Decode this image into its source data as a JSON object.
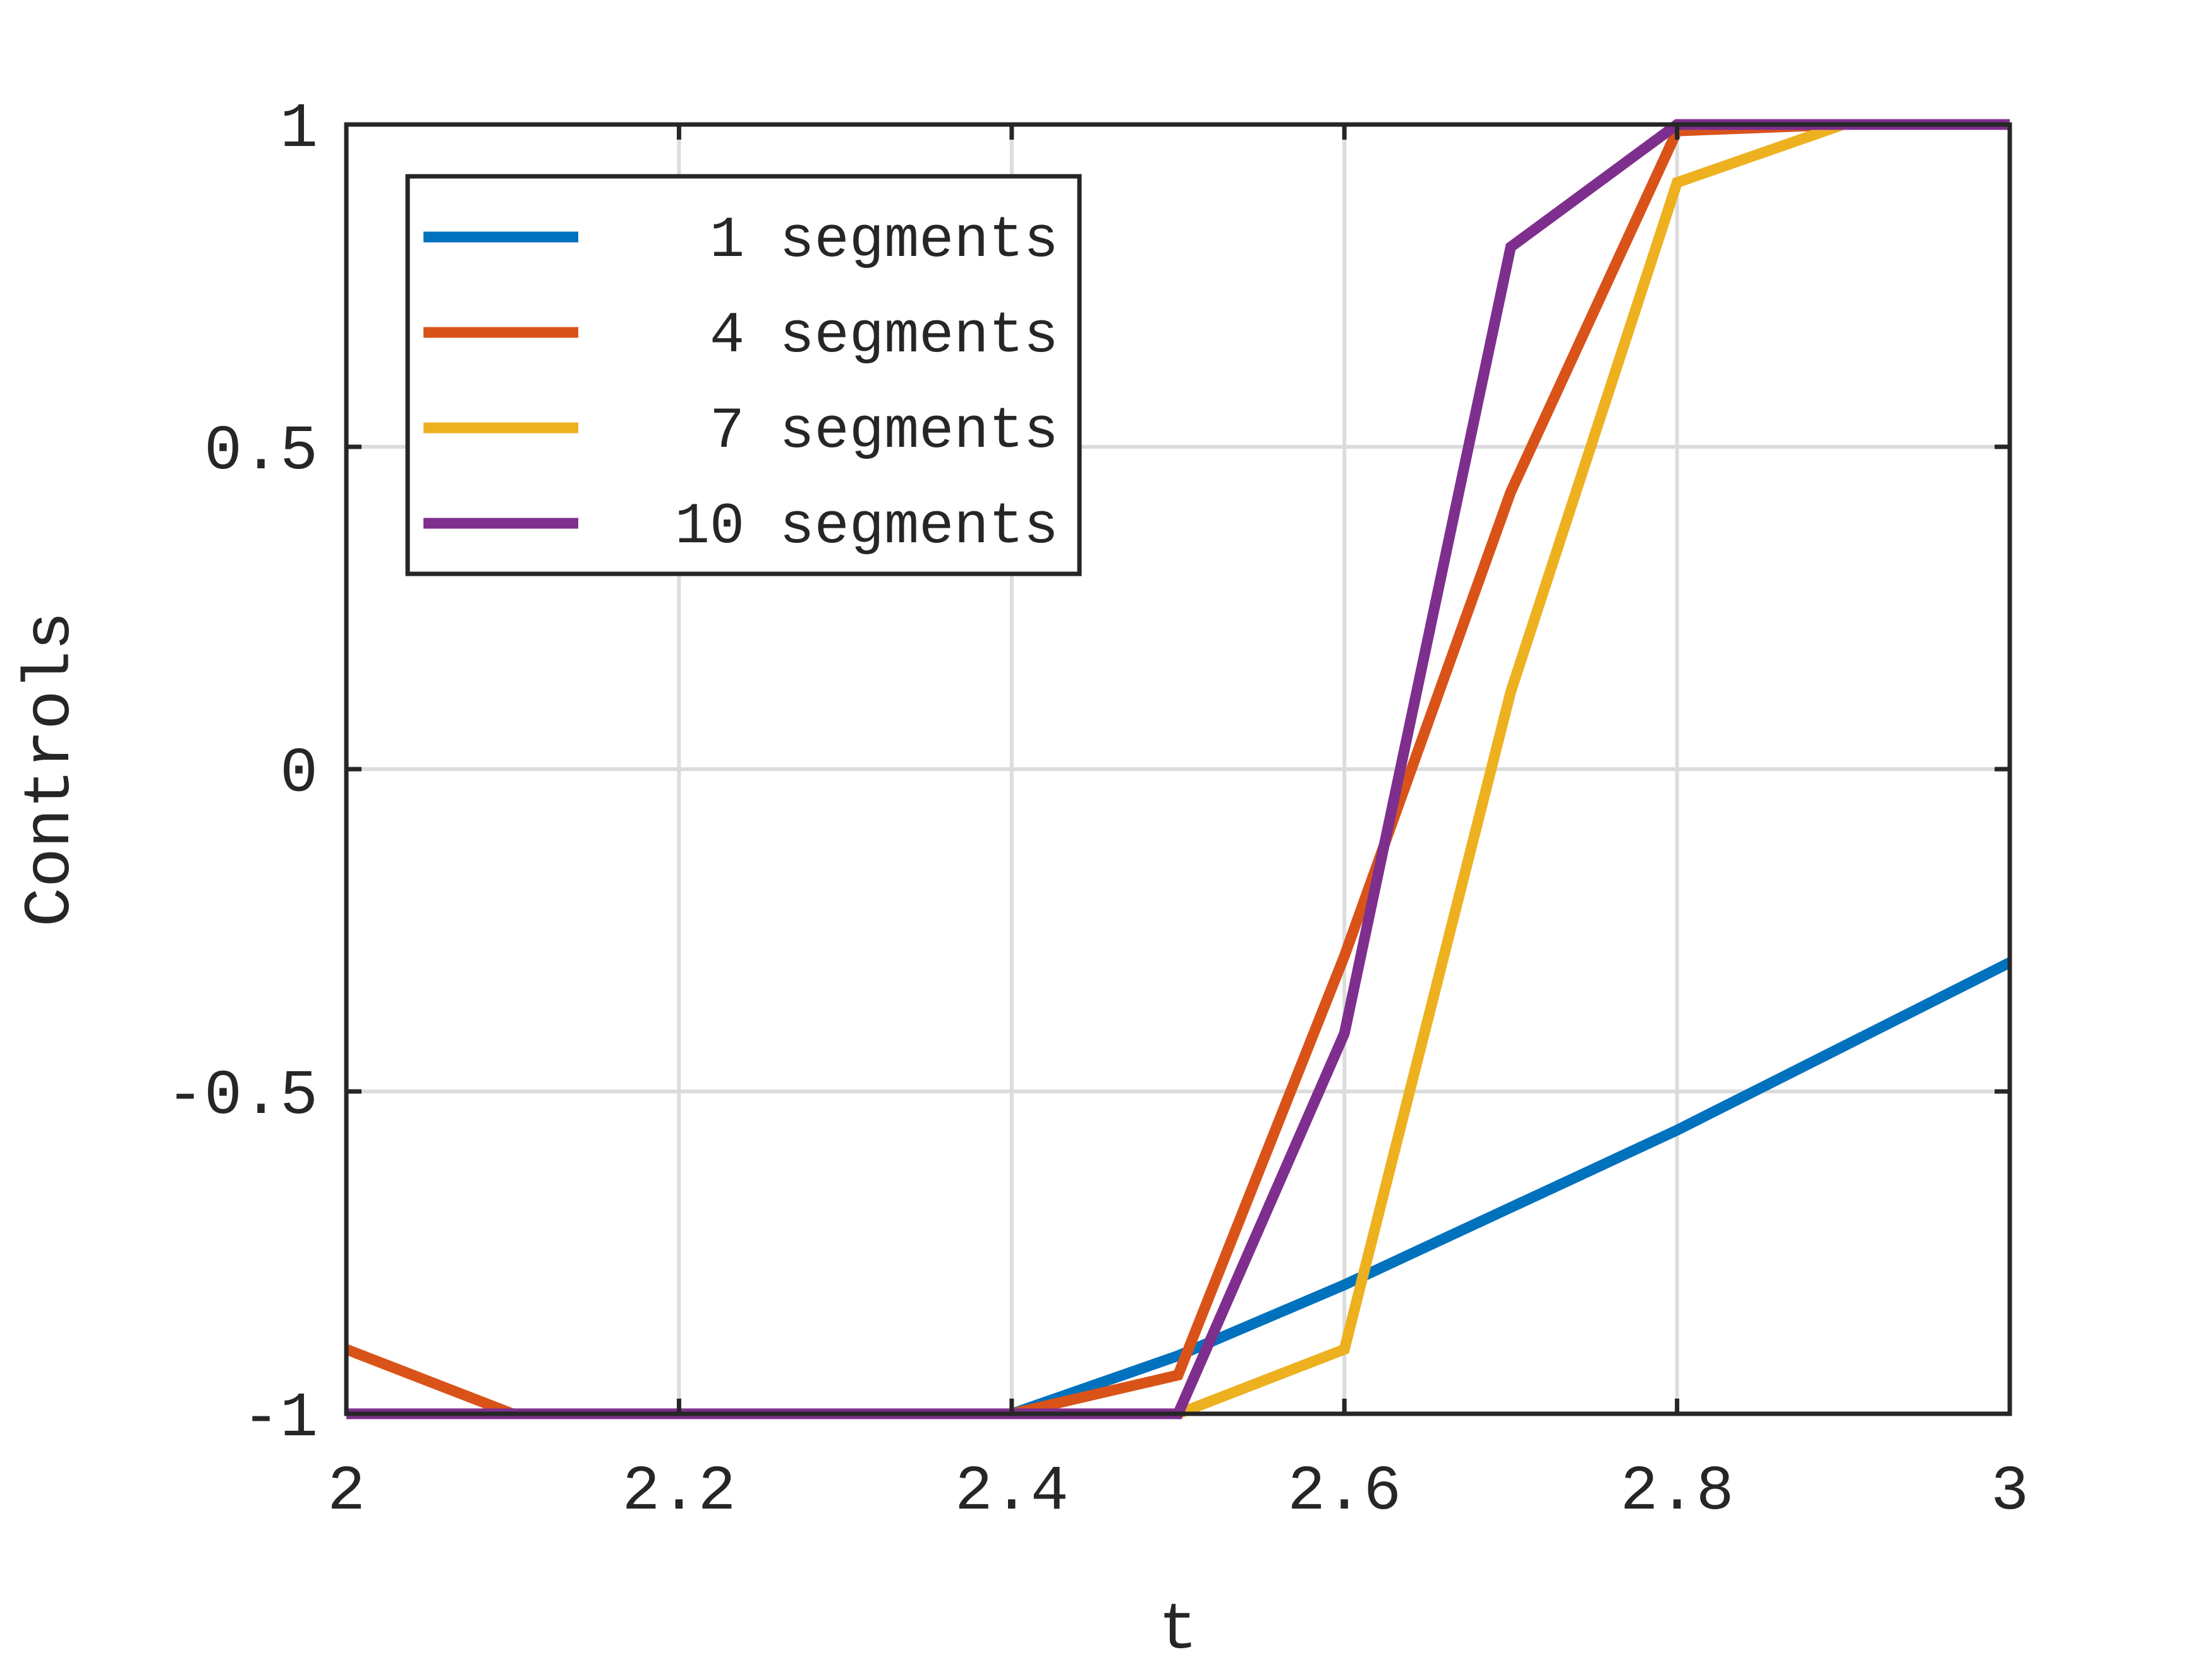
{
  "chart_data": {
    "type": "line",
    "title": "",
    "xlabel": "t",
    "ylabel": "Controls",
    "xlim": [
      2,
      3
    ],
    "ylim": [
      -1,
      1
    ],
    "grid": true,
    "legend_position": "top-left",
    "x_ticks": [
      2,
      2.2,
      2.4,
      2.6,
      2.8,
      3
    ],
    "x_tick_labels": [
      "2",
      "2.2",
      "2.4",
      "2.6",
      "2.8",
      "3"
    ],
    "y_ticks": [
      -1,
      -0.5,
      0,
      0.5,
      1
    ],
    "y_tick_labels": [
      "-1",
      "-0.5",
      "0",
      "0.5",
      "1"
    ],
    "series": [
      {
        "name": "1 segments",
        "legend_label": " 1 segments",
        "color": "#0072BD",
        "points": [
          [
            2.0,
            -1
          ],
          [
            2.1,
            -1
          ],
          [
            2.2,
            -1
          ],
          [
            2.3,
            -1
          ],
          [
            2.4,
            -1
          ],
          [
            2.5,
            -0.91
          ],
          [
            2.6,
            -0.8
          ],
          [
            2.7,
            -0.68
          ],
          [
            2.8,
            -0.56
          ],
          [
            2.9,
            -0.43
          ],
          [
            3.0,
            -0.3
          ]
        ]
      },
      {
        "name": "4 segments",
        "legend_label": " 4 segments",
        "color": "#D95319",
        "points": [
          [
            2.0,
            -0.9
          ],
          [
            2.1,
            -1
          ],
          [
            2.2,
            -1
          ],
          [
            2.3,
            -1
          ],
          [
            2.4,
            -1
          ],
          [
            2.5,
            -0.94
          ],
          [
            2.6,
            -0.29
          ],
          [
            2.7,
            0.43
          ],
          [
            2.8,
            0.99
          ],
          [
            2.9,
            1
          ],
          [
            3.0,
            1
          ]
        ]
      },
      {
        "name": "7 segments",
        "legend_label": " 7 segments",
        "color": "#EDB120",
        "points": [
          [
            2.0,
            -1
          ],
          [
            2.1,
            -1
          ],
          [
            2.2,
            -1
          ],
          [
            2.3,
            -1
          ],
          [
            2.4,
            -1
          ],
          [
            2.5,
            -1
          ],
          [
            2.6,
            -0.9
          ],
          [
            2.7,
            0.12
          ],
          [
            2.8,
            0.91
          ],
          [
            2.9,
            1
          ],
          [
            3.0,
            1
          ]
        ]
      },
      {
        "name": "10 segments",
        "legend_label": "10 segments",
        "color": "#7E2F8E",
        "points": [
          [
            2.0,
            -1
          ],
          [
            2.1,
            -1
          ],
          [
            2.2,
            -1
          ],
          [
            2.3,
            -1
          ],
          [
            2.4,
            -1
          ],
          [
            2.5,
            -1
          ],
          [
            2.6,
            -0.41
          ],
          [
            2.7,
            0.81
          ],
          [
            2.8,
            1
          ],
          [
            2.9,
            1
          ],
          [
            3.0,
            1
          ]
        ]
      }
    ]
  }
}
